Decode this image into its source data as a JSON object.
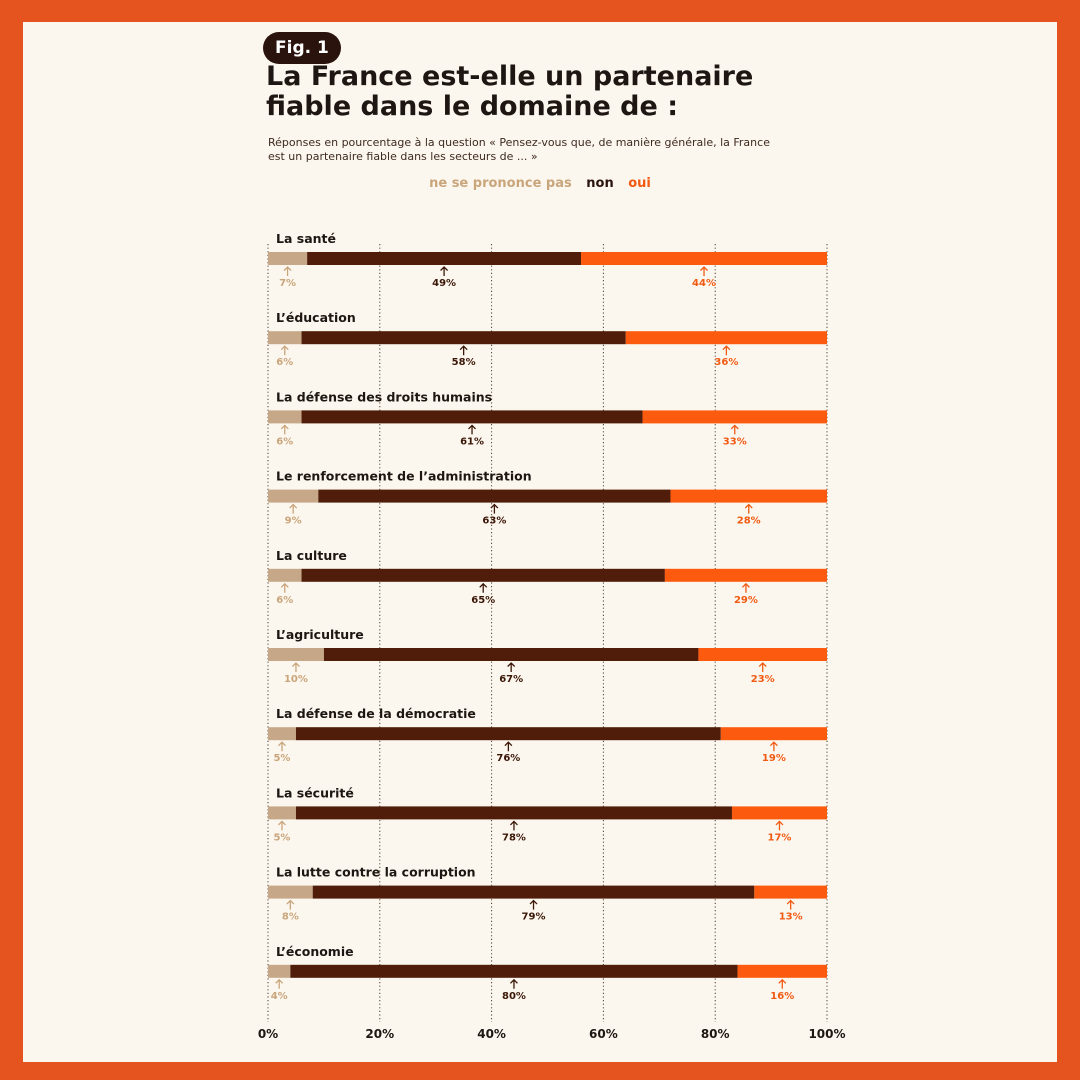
{
  "header": {
    "fig_label": "Fig. 1",
    "title_line1": "La France est-elle un partenaire",
    "title_line2": "fiable dans le domaine de :",
    "subtitle_line1": "Réponses en pourcentage à la question « Pensez-vous que, de manière générale, la France",
    "subtitle_line2": "est un partenaire fiable dans les secteurs de ... »"
  },
  "chart_data": {
    "type": "bar",
    "orientation": "horizontal",
    "stacked": true,
    "legend_position": "top-center",
    "grid": "vertical-dotted",
    "xlim": [
      0,
      100
    ],
    "x_ticks": [
      "0%",
      "20%",
      "40%",
      "60%",
      "80%",
      "100%"
    ],
    "categories": [
      "La santé",
      "L’éducation",
      "La défense des droits humains",
      "Le renforcement de l’administration",
      "La culture",
      "L’agriculture",
      "La défense de la démocratie",
      "La sécurité",
      "La lutte contre la corruption",
      "L’économie"
    ],
    "series": [
      {
        "name": "ne se prononce pas",
        "color": "#c6a889",
        "values": [
          7,
          6,
          6,
          9,
          6,
          10,
          5,
          5,
          8,
          4
        ]
      },
      {
        "name": "non",
        "color": "#4f1d09",
        "values": [
          49,
          58,
          61,
          63,
          65,
          67,
          76,
          78,
          79,
          80
        ]
      },
      {
        "name": "oui",
        "color": "#fc5b0f",
        "values": [
          44,
          36,
          33,
          28,
          29,
          23,
          19,
          17,
          13,
          16
        ]
      }
    ],
    "label_colors": [
      "#c9a57c",
      "#3b1708",
      "#f05a12"
    ]
  }
}
